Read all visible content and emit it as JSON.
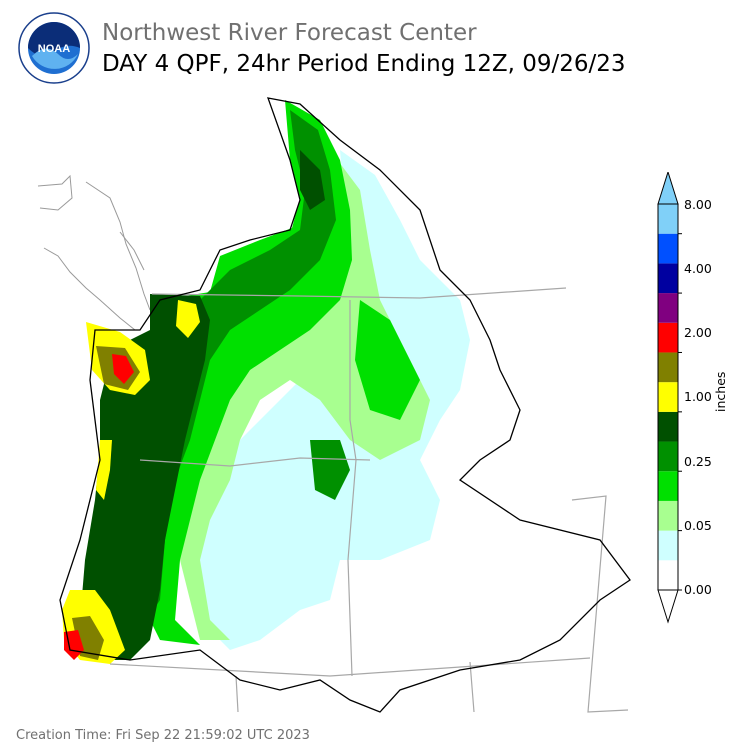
{
  "header": {
    "organization": "Northwest River Forecast Center",
    "product_title": "DAY 4 QPF, 24hr Period Ending 12Z, 09/26/23",
    "logo_text": "NOAA"
  },
  "legend": {
    "unit": "inches",
    "tick_labels": [
      "0.00",
      "0.05",
      "0.25",
      "1.00",
      "2.00",
      "4.00",
      "8.00"
    ],
    "color_bins": [
      "#ffffff",
      "#cfffff",
      "#a8ff90",
      "#00e000",
      "#009000",
      "#005000",
      "#ffff00",
      "#808000",
      "#ff0000",
      "#800080",
      "#0000a0",
      "#0050ff",
      "#80d0f8"
    ]
  },
  "footer": {
    "creation_time": "Creation Time: Fri Sep 22 21:59:02 UTC 2023"
  }
}
